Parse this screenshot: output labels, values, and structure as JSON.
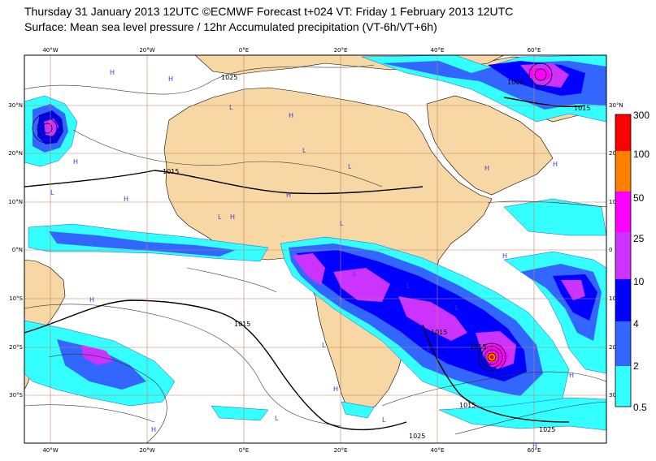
{
  "header": {
    "line1": "Thursday 31 January 2013 12UTC ©ECMWF Forecast t+024 VT: Friday 1 February 2013 12UTC",
    "line2": "Surface: Mean sea level pressure / 12hr Accumulated precipitation (VT-6h/VT+6h)"
  },
  "axes": {
    "top": [
      "40°W",
      "20°W",
      "0°E",
      "20°E",
      "40°E",
      "60°E"
    ],
    "left": [
      "30°N",
      "20°N",
      "10°N",
      "0°N",
      "10°S",
      "20°S",
      "30°S"
    ],
    "right": [
      "30°N",
      "20",
      "10",
      "0",
      "10",
      "20",
      "30"
    ],
    "bottom": [
      "40°W",
      "20°W",
      "0°E",
      "20°E",
      "40°E",
      "60°E"
    ]
  },
  "legend": {
    "labels": [
      "300",
      "100",
      "50",
      "25",
      "10",
      "4",
      "2",
      "0.5"
    ],
    "colors": [
      "#ff0000",
      "#ff8000",
      "#ff00ff",
      "#cc33ff",
      "#0000ff",
      "#3366ff",
      "#00ccff",
      "#33ffff"
    ]
  },
  "isobars": [
    "1025",
    "1015",
    "1015",
    "1000",
    "1015",
    "1015",
    "1015",
    "1015",
    "1025",
    "1025"
  ],
  "pressure_centres": [
    "H",
    "H",
    "H",
    "L",
    "L",
    "H",
    "L",
    "H",
    "L",
    "H",
    "L",
    "H",
    "L",
    "L",
    "H",
    "L",
    "L",
    "H",
    "L",
    "L",
    "H",
    "L",
    "H",
    "L",
    "H",
    "H",
    "H",
    "H"
  ],
  "colors": {
    "land": "#f7d7a4",
    "grid": "#c08060",
    "frame": "#000000"
  }
}
